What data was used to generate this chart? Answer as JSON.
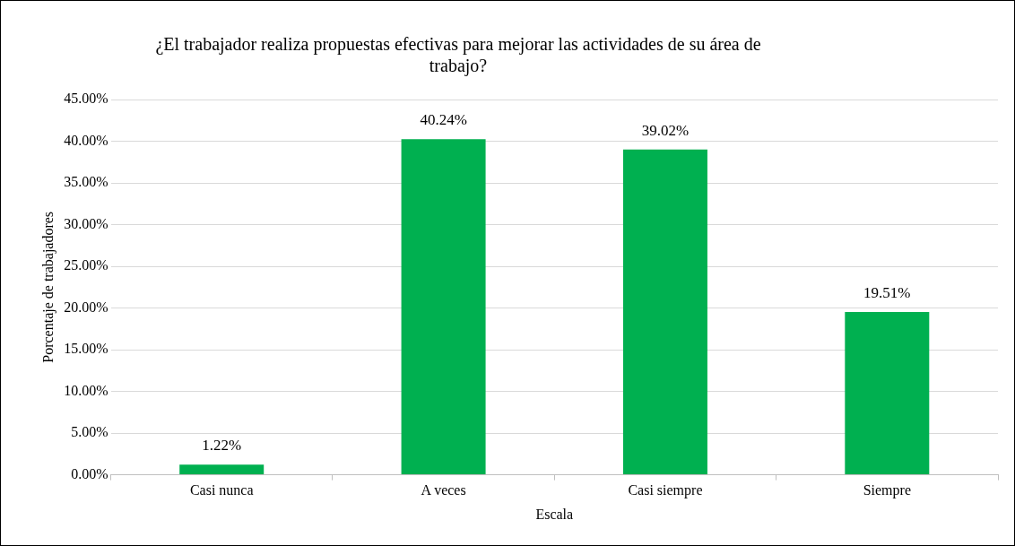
{
  "chart_data": {
    "type": "bar",
    "title": "¿El trabajador realiza propuestas efectivas para mejorar las actividades de su área de trabajo?",
    "xlabel": "Escala",
    "ylabel": "Porcentaje de trabajadores",
    "categories": [
      "Casi nunca",
      "A veces",
      "Casi siempre",
      "Siempre"
    ],
    "values": [
      1.22,
      40.24,
      39.02,
      19.51
    ],
    "color": "#00b050",
    "value_labels": [
      "1.22%",
      "40.24%",
      "39.02%",
      "19.51%"
    ],
    "ylim": [
      0,
      45
    ],
    "yticks": [
      {
        "value": 0,
        "label": "0.00%"
      },
      {
        "value": 5,
        "label": "5.00%"
      },
      {
        "value": 10,
        "label": "10.00%"
      },
      {
        "value": 15,
        "label": "15.00%"
      },
      {
        "value": 20,
        "label": "20.00%"
      },
      {
        "value": 25,
        "label": "25.00%"
      },
      {
        "value": 30,
        "label": "30.00%"
      },
      {
        "value": 35,
        "label": "35.00%"
      },
      {
        "value": 40,
        "label": "40.00%"
      },
      {
        "value": 45,
        "label": "45.00%"
      }
    ],
    "grid": "y",
    "legend": false
  }
}
